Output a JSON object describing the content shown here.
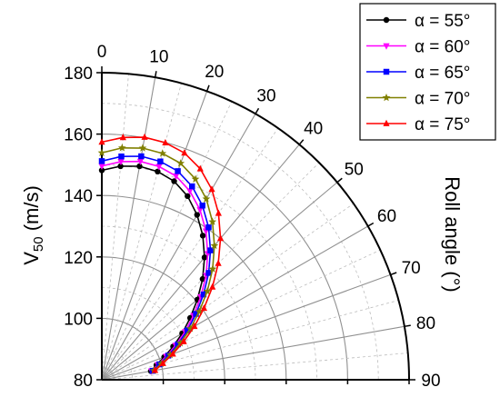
{
  "chart_data": {
    "type": "polar-line",
    "title": "",
    "radial_axis": {
      "label_main": "V",
      "label_sub": "50",
      "label_unit": " (m/s)",
      "range": [
        80,
        180
      ],
      "ticks": [
        80,
        100,
        120,
        140,
        160,
        180
      ]
    },
    "angular_axis": {
      "label": "Roll angle (°)",
      "range": [
        0,
        90
      ],
      "ticks": [
        0,
        10,
        20,
        30,
        40,
        50,
        60,
        70,
        80,
        90
      ],
      "zero_direction": "up",
      "direction": "clockwise"
    },
    "grid": true,
    "legend_position": "top-right",
    "angles": [
      0,
      5,
      10,
      15,
      20,
      25,
      30,
      35,
      40,
      45,
      50,
      55,
      60,
      65,
      70,
      75,
      80
    ],
    "series": [
      {
        "name": "α = 55°",
        "color": "#000000",
        "marker": "circle",
        "values": [
          148.2,
          149.8,
          150.6,
          150.2,
          148.8,
          146.0,
          142.0,
          137.3,
          132.0,
          126.4,
          120.6,
          115.1,
          110.2,
          105.6,
          101.6,
          98.4,
          96.2
        ]
      },
      {
        "name": "α = 60°",
        "color": "#ff00ff",
        "marker": "triangle-down",
        "values": [
          149.6,
          151.3,
          152.2,
          151.9,
          150.6,
          147.8,
          143.9,
          139.1,
          133.6,
          128.0,
          122.0,
          116.4,
          111.3,
          106.5,
          102.3,
          98.9,
          96.4
        ]
      },
      {
        "name": "α = 65°",
        "color": "#0000ff",
        "marker": "square",
        "values": [
          151.2,
          153.0,
          153.9,
          153.6,
          152.3,
          149.5,
          145.5,
          140.6,
          135.0,
          129.2,
          123.2,
          117.4,
          112.2,
          107.3,
          103.0,
          99.4,
          96.8
        ]
      },
      {
        "name": "α = 70°",
        "color": "#808000",
        "marker": "star",
        "values": [
          153.9,
          155.8,
          156.6,
          156.3,
          155.0,
          152.1,
          148.0,
          142.8,
          137.0,
          131.0,
          124.8,
          118.7,
          113.3,
          108.2,
          103.7,
          100.0,
          97.2
        ]
      },
      {
        "name": "α = 75°",
        "color": "#ff0000",
        "marker": "triangle-up",
        "values": [
          157.4,
          159.2,
          160.2,
          159.9,
          158.6,
          155.8,
          151.6,
          146.2,
          140.1,
          133.6,
          127.0,
          120.6,
          114.8,
          109.4,
          104.6,
          100.6,
          97.6
        ]
      }
    ]
  }
}
